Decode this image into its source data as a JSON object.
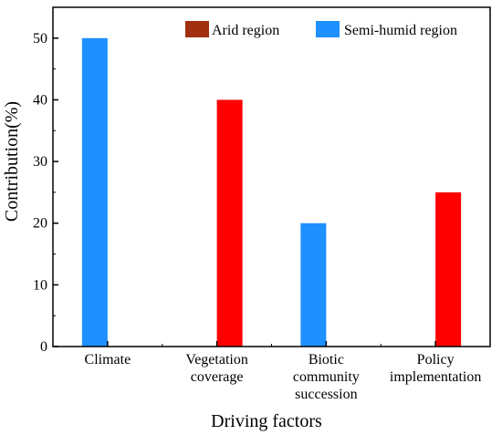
{
  "chart_data": {
    "type": "bar",
    "categories": [
      [
        "Climate"
      ],
      [
        "Vegetation",
        "coverage"
      ],
      [
        "Biotic",
        "community",
        "succession"
      ],
      [
        "Policy",
        "implementation"
      ]
    ],
    "series": [
      {
        "name": "Arid region",
        "color": "#ff0000",
        "values": [
          0,
          40,
          0,
          25
        ]
      },
      {
        "name": "Semi-humid region",
        "color": "#1e90ff",
        "values": [
          50,
          0,
          20,
          0
        ]
      }
    ],
    "xlabel": "Driving factors",
    "ylabel": "Contribution(%)",
    "ylim": [
      0,
      55
    ],
    "yticks": [
      0,
      10,
      20,
      30,
      40,
      50
    ],
    "grid": false,
    "legend_position": "top-right"
  }
}
